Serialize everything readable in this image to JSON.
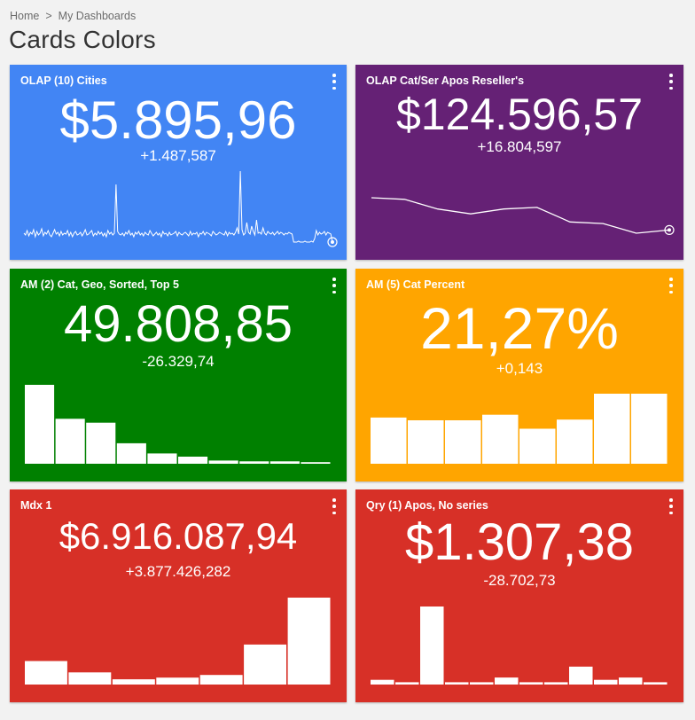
{
  "breadcrumb": {
    "home": "Home",
    "separator": ">",
    "current": "My Dashboards"
  },
  "page": {
    "title": "Cards Colors"
  },
  "cards": [
    {
      "title": "OLAP (10) Cities",
      "value": "$5.895,96",
      "delta": "+1.487,587",
      "color": "#4285f4",
      "sparkline_type": "line",
      "spark_values": [
        30,
        28,
        33,
        27,
        31,
        29,
        34,
        26,
        32,
        28,
        30,
        35,
        27,
        31,
        29,
        33,
        28,
        26,
        30,
        34,
        29,
        31,
        27,
        32,
        28,
        30,
        29,
        33,
        27,
        31,
        26,
        30,
        32,
        28,
        29,
        31,
        27,
        30,
        34,
        28,
        29,
        31,
        33,
        27,
        30,
        28,
        32,
        29,
        31,
        27,
        30,
        26,
        33,
        29,
        31,
        28,
        30,
        85,
        32,
        29,
        28,
        30,
        27,
        31,
        29,
        33,
        28,
        30,
        26,
        31,
        29,
        32,
        28,
        30,
        27,
        31,
        29,
        28,
        33,
        30,
        27,
        29,
        31,
        28,
        30,
        26,
        32,
        29,
        30,
        27,
        31,
        28,
        29,
        30,
        32,
        27,
        31,
        29,
        28,
        30,
        31,
        29,
        27,
        32,
        28,
        30,
        29,
        31,
        26,
        30,
        29,
        32,
        28,
        31,
        30,
        29,
        27,
        32,
        30,
        28,
        29,
        31,
        30,
        29,
        28,
        32,
        27,
        31,
        29,
        30,
        28,
        31,
        36,
        29,
        100,
        34,
        28,
        30,
        42,
        31,
        29,
        38,
        32,
        28,
        45,
        30,
        31,
        29,
        36,
        30,
        28,
        32,
        30,
        29,
        31,
        28,
        30,
        32,
        29,
        31,
        30,
        28,
        30,
        29,
        31,
        30,
        29,
        20,
        20,
        20,
        21,
        20,
        20,
        20,
        21,
        20,
        20,
        20,
        21,
        20,
        24,
        33,
        28,
        31,
        29,
        30,
        32,
        28,
        31,
        30,
        29,
        20
      ],
      "show_endpoint": true
    },
    {
      "title": "OLAP Cat/Ser Apos Reseller's",
      "value": "$124.596,57",
      "delta": "+16.804,597",
      "color": "#652175",
      "sparkline_type": "line",
      "spark_values": [
        45,
        44,
        38,
        35,
        38,
        39,
        30,
        29,
        23,
        25
      ],
      "show_endpoint": true
    },
    {
      "title": "AM (2) Cat, Geo, Sorted, Top 5",
      "value": "49.808,85",
      "delta": "-26.329,74",
      "color": "#008000",
      "sparkline_type": "bar",
      "spark_values": [
        100,
        57,
        52,
        26,
        13,
        9,
        4,
        3,
        3,
        2
      ]
    },
    {
      "title": "AM (5) Cat Percent",
      "value": "21,27%",
      "delta": "+0,143",
      "color": "#ffa500",
      "sparkline_type": "bar",
      "spark_values": [
        66,
        62,
        62,
        70,
        50,
        63,
        100,
        100
      ]
    },
    {
      "title": "Mdx 1",
      "value": "$6.916.087,94",
      "delta": "+3.877.426,282",
      "color": "#d73027",
      "sparkline_type": "bar",
      "spark_values": [
        27,
        14,
        6,
        8,
        11,
        46,
        100
      ]
    },
    {
      "title": "Qry (1) Apos, No series",
      "value": "$1.307,38",
      "delta": "-28.702,73",
      "color": "#d73027",
      "sparkline_type": "bar",
      "spark_values": [
        6,
        3,
        100,
        3,
        3,
        9,
        3,
        3,
        23,
        6,
        9,
        3
      ]
    }
  ]
}
